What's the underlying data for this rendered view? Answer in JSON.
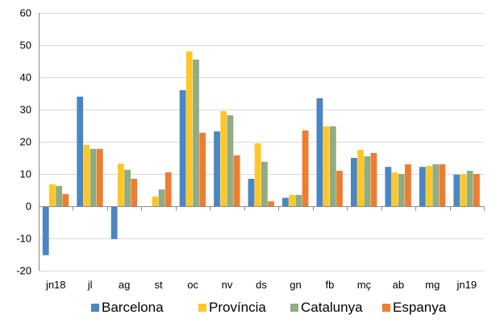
{
  "chart_data": {
    "type": "bar",
    "categories": [
      "jn18",
      "jl",
      "ag",
      "st",
      "oc",
      "nv",
      "ds",
      "gn",
      "fb",
      "mç",
      "ab",
      "mg",
      "jn19"
    ],
    "series": [
      {
        "name": "Barcelona",
        "color": "#4a86c1",
        "values": [
          -15.2,
          34,
          -10.2,
          0,
          36,
          23.2,
          8.5,
          2.6,
          33.5,
          15,
          12.2,
          12.2,
          9.8
        ]
      },
      {
        "name": "Província",
        "color": "#ffc726",
        "values": [
          6.8,
          19,
          13.2,
          3,
          48,
          29.5,
          19.5,
          3.5,
          24.8,
          17.5,
          10.5,
          12.5,
          10
        ]
      },
      {
        "name": "Catalunya",
        "color": "#8fac82",
        "values": [
          6.3,
          17.8,
          11.3,
          5.2,
          45.5,
          28.2,
          13.8,
          3.5,
          24.8,
          15.5,
          10,
          13,
          11
        ]
      },
      {
        "name": "Espanya",
        "color": "#ed7d31",
        "values": [
          3.8,
          17.8,
          8.5,
          10.5,
          22.8,
          15.8,
          1.5,
          23.5,
          11,
          16.5,
          13,
          13,
          10
        ]
      }
    ],
    "yticks": [
      "60",
      "50",
      "40",
      "30",
      "20",
      "10",
      "0",
      "-10",
      "-20"
    ],
    "ylim": [
      -20,
      60
    ],
    "grid": true,
    "legend_position": "bottom"
  }
}
